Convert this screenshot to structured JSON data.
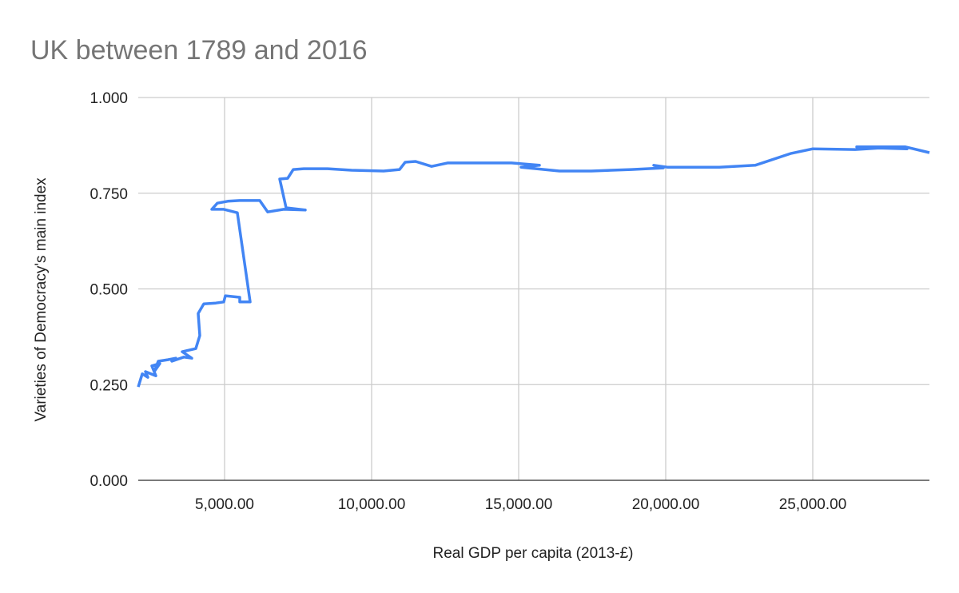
{
  "chart_data": {
    "type": "line",
    "title": "UK between 1789 and 2016",
    "x_label": "Real GDP per capita (2013-£)",
    "y_label": "Varieties of Democracy's main index",
    "xlim": [
      2065,
      28967
    ],
    "ylim": [
      0,
      1
    ],
    "xticks": [
      {
        "value": 5000,
        "label": "5,000.00"
      },
      {
        "value": 10000,
        "label": "10,000.00"
      },
      {
        "value": 15000,
        "label": "15,000.00"
      },
      {
        "value": 20000,
        "label": "20,000.00"
      },
      {
        "value": 25000,
        "label": "25,000.00"
      }
    ],
    "yticks": [
      {
        "value": 0,
        "label": "0.000"
      },
      {
        "value": 0.25,
        "label": "0.250"
      },
      {
        "value": 0.5,
        "label": "0.500"
      },
      {
        "value": 0.75,
        "label": "0.750"
      },
      {
        "value": 1,
        "label": "1.000"
      }
    ],
    "grid": true,
    "series": [
      {
        "color": "#4285f4",
        "x": [
          2065,
          2201,
          2391,
          2310,
          2663,
          2527,
          2799,
          2609,
          2745,
          3071,
          3342,
          3207,
          3614,
          3886,
          3560,
          4022,
          4158,
          4103,
          4293,
          4701,
          4973,
          5027,
          5516,
          5516,
          5870,
          5435,
          4973,
          4565,
          4755,
          5109,
          5516,
          6196,
          6467,
          7011,
          7745,
          7092,
          6875,
          7147,
          7337,
          7690,
          8505,
          9321,
          10408,
          10951,
          11141,
          11495,
          12038,
          12582,
          14755,
          15707,
          15082,
          16386,
          17473,
          18832,
          19919,
          19593,
          20055,
          21821,
          23044,
          24266,
          25000,
          26440,
          27255,
          28207,
          26495,
          28152,
          28967
        ],
        "values": [
          0.244,
          0.278,
          0.269,
          0.284,
          0.273,
          0.299,
          0.305,
          0.284,
          0.311,
          0.315,
          0.319,
          0.311,
          0.322,
          0.319,
          0.336,
          0.344,
          0.378,
          0.436,
          0.461,
          0.463,
          0.466,
          0.482,
          0.478,
          0.466,
          0.466,
          0.699,
          0.708,
          0.708,
          0.724,
          0.729,
          0.731,
          0.731,
          0.701,
          0.708,
          0.706,
          0.712,
          0.787,
          0.789,
          0.812,
          0.814,
          0.814,
          0.81,
          0.808,
          0.812,
          0.831,
          0.833,
          0.82,
          0.829,
          0.829,
          0.823,
          0.818,
          0.808,
          0.808,
          0.812,
          0.816,
          0.823,
          0.818,
          0.818,
          0.823,
          0.854,
          0.866,
          0.864,
          0.868,
          0.866,
          0.871,
          0.871,
          0.856
        ]
      }
    ]
  }
}
